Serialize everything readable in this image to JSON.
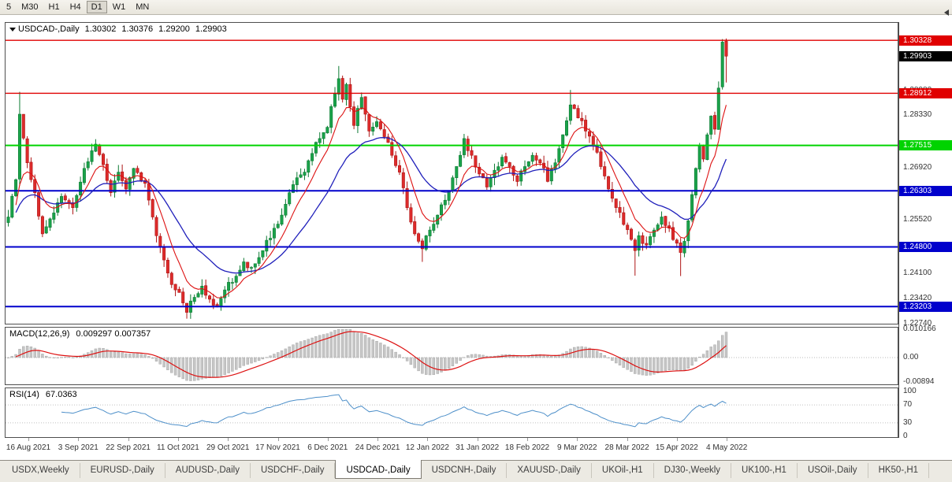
{
  "toolbar": {
    "timeframes": [
      {
        "label": "5",
        "active": false
      },
      {
        "label": "M30",
        "active": false
      },
      {
        "label": "H1",
        "active": false
      },
      {
        "label": "H4",
        "active": false
      },
      {
        "label": "D1",
        "active": true
      },
      {
        "label": "W1",
        "active": false
      },
      {
        "label": "MN",
        "active": false
      }
    ]
  },
  "chart": {
    "title": "USDCAD-,Daily",
    "ohlc": {
      "open": "1.30302",
      "high": "1.30376",
      "low": "1.29200",
      "close": "1.29903"
    },
    "price_axis": {
      "top": 1.30795,
      "bottom": 1.22745,
      "plain_labels": [
        {
          "price": 1.2898,
          "label": "1.28980"
        },
        {
          "price": 1.2833,
          "label": "1.28330"
        },
        {
          "price": 1.2692,
          "label": "1.26920"
        },
        {
          "price": 1.2552,
          "label": "1.25520"
        },
        {
          "price": 1.241,
          "label": "1.24100"
        },
        {
          "price": 1.2342,
          "label": "1.23420"
        },
        {
          "price": 1.2274,
          "label": "1.22740"
        }
      ]
    },
    "levels": [
      {
        "price": 1.30328,
        "label": "1.30328",
        "color": "#e00000",
        "width": 1.4
      },
      {
        "price": 1.28912,
        "label": "1.28912",
        "color": "#e00000",
        "width": 1.4
      },
      {
        "price": 1.27515,
        "label": "1.27515",
        "color": "#00d300",
        "width": 2
      },
      {
        "price": 1.26303,
        "label": "1.26303",
        "color": "#0000cc",
        "width": 2
      },
      {
        "price": 1.248,
        "label": "1.24800",
        "color": "#0000cc",
        "width": 2
      },
      {
        "price": 1.23203,
        "label": "1.23203",
        "color": "#0000cc",
        "width": 2
      }
    ],
    "current": {
      "price": 1.29903,
      "label": "1.29903",
      "color": "#000000"
    }
  },
  "macd": {
    "label": "MACD(12,26,9)",
    "values": "0.009297 0.007357",
    "scale_labels": [
      {
        "value": 0.010166,
        "label": "0.010166"
      },
      {
        "value": 0,
        "label": "0.00"
      },
      {
        "value": -0.00894,
        "label": "-0.00894"
      }
    ]
  },
  "rsi": {
    "label": "RSI(14)",
    "value": "67.0363",
    "scale_labels": [
      {
        "value": 100,
        "label": "100"
      },
      {
        "value": 70,
        "label": "70"
      },
      {
        "value": 30,
        "label": "30"
      },
      {
        "value": 0,
        "label": "0"
      }
    ],
    "levels": [
      70,
      30
    ]
  },
  "dates": [
    "16 Aug 2021",
    "3 Sep 2021",
    "22 Sep 2021",
    "11 Oct 2021",
    "29 Oct 2021",
    "17 Nov 2021",
    "6 Dec 2021",
    "24 Dec 2021",
    "12 Jan 2022",
    "31 Jan 2022",
    "18 Feb 2022",
    "9 Mar 2022",
    "28 Mar 2022",
    "15 Apr 2022",
    "4 May 2022"
  ],
  "tabs": [
    {
      "label": "USDX,Weekly",
      "active": false
    },
    {
      "label": "EURUSD-,Daily",
      "active": false
    },
    {
      "label": "AUDUSD-,Daily",
      "active": false
    },
    {
      "label": "USDCHF-,Daily",
      "active": false
    },
    {
      "label": "USDCAD-,Daily",
      "active": true
    },
    {
      "label": "USDCNH-,Daily",
      "active": false
    },
    {
      "label": "XAUUSD-,Daily",
      "active": false
    },
    {
      "label": "UKOil-,H1",
      "active": false
    },
    {
      "label": "DJ30-,Weekly",
      "active": false
    },
    {
      "label": "UK100-,H1",
      "active": false
    },
    {
      "label": "USOil-,Daily",
      "active": false
    },
    {
      "label": "HK50-,H1",
      "active": false
    }
  ],
  "colors": {
    "up": "#1aa24a",
    "up_stroke": "#0d7a33",
    "down": "#dd2b2b",
    "down_stroke": "#ae1515",
    "ma_fast": "#dd1111",
    "ma_slow": "#2020bb",
    "macd_hist": "#c6c6c6",
    "macd_signal": "#dd1111",
    "rsi_line": "#4d8fc9",
    "level_red": "#e00000",
    "level_green": "#00d300",
    "level_blue": "#0000cc"
  },
  "chart_data": {
    "type": "candlestick",
    "symbol": "USDCAD-",
    "timeframe": "Daily",
    "bars": 190,
    "last_bar_ohlc": {
      "open": 1.30302,
      "high": 1.30376,
      "low": 1.292,
      "close": 1.29903
    },
    "indicators": {
      "macd": [
        12,
        26,
        9
      ],
      "rsi": 14,
      "ma_fast_period": 8,
      "ma_slow_period": 24
    },
    "anchors": [
      [
        0,
        1.256
      ],
      [
        2,
        1.266
      ],
      [
        3,
        1.2835
      ],
      [
        5,
        1.2705
      ],
      [
        7,
        1.2625
      ],
      [
        9,
        1.2515
      ],
      [
        11,
        1.2555
      ],
      [
        14,
        1.2615
      ],
      [
        17,
        1.2585
      ],
      [
        20,
        1.269
      ],
      [
        23,
        1.2755
      ],
      [
        25,
        1.27
      ],
      [
        27,
        1.2625
      ],
      [
        29,
        1.268
      ],
      [
        31,
        1.2635
      ],
      [
        33,
        1.269
      ],
      [
        36,
        1.265
      ],
      [
        38,
        1.256
      ],
      [
        40,
        1.248
      ],
      [
        42,
        1.241
      ],
      [
        44,
        1.2365
      ],
      [
        46,
        1.233
      ],
      [
        47,
        1.2305
      ],
      [
        49,
        1.2345
      ],
      [
        51,
        1.2375
      ],
      [
        53,
        1.234
      ],
      [
        55,
        1.232
      ],
      [
        57,
        1.2365
      ],
      [
        59,
        1.2385
      ],
      [
        62,
        1.244
      ],
      [
        64,
        1.2425
      ],
      [
        67,
        1.247
      ],
      [
        70,
        1.253
      ],
      [
        72,
        1.2565
      ],
      [
        74,
        1.2625
      ],
      [
        76,
        1.2665
      ],
      [
        78,
        1.268
      ],
      [
        80,
        1.273
      ],
      [
        82,
        1.277
      ],
      [
        84,
        1.28
      ],
      [
        86,
        1.289
      ],
      [
        87,
        1.293
      ],
      [
        88,
        1.2875
      ],
      [
        89,
        1.2915
      ],
      [
        90,
        1.2855
      ],
      [
        91,
        1.2805
      ],
      [
        93,
        1.288
      ],
      [
        94,
        1.2835
      ],
      [
        95,
        1.279
      ],
      [
        97,
        1.2815
      ],
      [
        99,
        1.2775
      ],
      [
        101,
        1.2725
      ],
      [
        103,
        1.268
      ],
      [
        105,
        1.2585
      ],
      [
        107,
        1.2515
      ],
      [
        109,
        1.2475
      ],
      [
        111,
        1.2525
      ],
      [
        113,
        1.2565
      ],
      [
        115,
        1.2605
      ],
      [
        117,
        1.2665
      ],
      [
        119,
        1.2725
      ],
      [
        120,
        1.277
      ],
      [
        122,
        1.2725
      ],
      [
        124,
        1.2675
      ],
      [
        126,
        1.264
      ],
      [
        128,
        1.2685
      ],
      [
        130,
        1.272
      ],
      [
        132,
        1.2695
      ],
      [
        134,
        1.2655
      ],
      [
        136,
        1.2695
      ],
      [
        138,
        1.2725
      ],
      [
        140,
        1.2705
      ],
      [
        142,
        1.2655
      ],
      [
        144,
        1.2705
      ],
      [
        146,
        1.278
      ],
      [
        148,
        1.286
      ],
      [
        150,
        1.2825
      ],
      [
        152,
        1.279
      ],
      [
        154,
        1.275
      ],
      [
        156,
        1.2695
      ],
      [
        158,
        1.2635
      ],
      [
        160,
        1.2585
      ],
      [
        162,
        1.254
      ],
      [
        164,
        1.25
      ],
      [
        165,
        1.247
      ],
      [
        166,
        1.251
      ],
      [
        168,
        1.2485
      ],
      [
        170,
        1.2525
      ],
      [
        172,
        1.256
      ],
      [
        174,
        1.253
      ],
      [
        176,
        1.249
      ],
      [
        177,
        1.2465
      ],
      [
        178,
        1.2495
      ],
      [
        179,
        1.255
      ],
      [
        180,
        1.262
      ],
      [
        181,
        1.269
      ],
      [
        182,
        1.275
      ],
      [
        183,
        1.2715
      ],
      [
        184,
        1.278
      ],
      [
        185,
        1.283
      ],
      [
        186,
        1.2795
      ],
      [
        187,
        1.2905
      ],
      [
        188,
        1.3028
      ],
      [
        189,
        1.29903
      ]
    ],
    "wicks": {
      "3": {
        "h": 1.2895
      },
      "47": {
        "l": 1.2288
      },
      "87": {
        "h": 1.2964
      },
      "109": {
        "l": 1.244
      },
      "148": {
        "h": 1.29
      },
      "165": {
        "l": 1.2403
      },
      "177": {
        "l": 1.2402
      }
    },
    "overrides": {
      "188": {
        "o": 1.2908,
        "h": 1.3036,
        "l": 1.2901,
        "c": 1.3028
      },
      "189": {
        "o": 1.30302,
        "h": 1.30376,
        "l": 1.292,
        "c": 1.29903
      }
    }
  }
}
